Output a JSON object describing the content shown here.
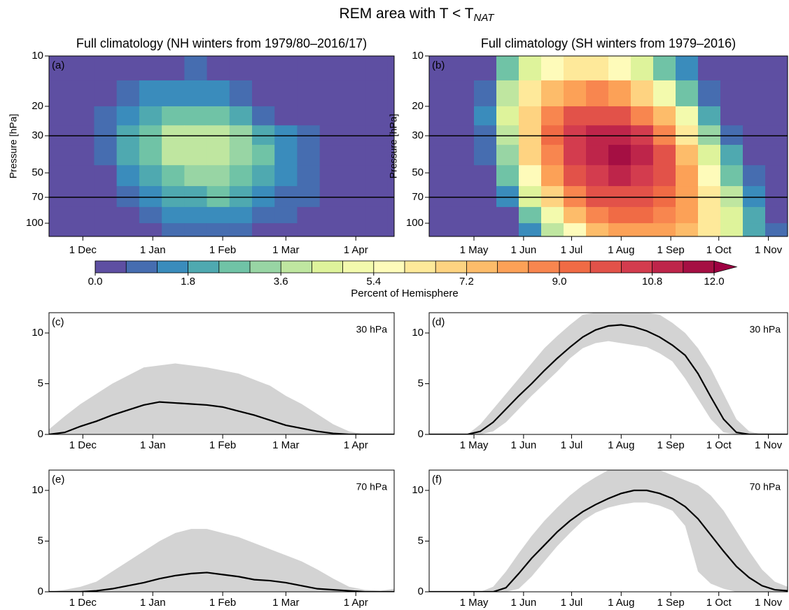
{
  "figure": {
    "title": "REM area with T < T",
    "title_sub": "NAT"
  },
  "colorbar": {
    "label": "Percent of Hemisphere",
    "levels": [
      0,
      0.6,
      1.2,
      1.8,
      2.4,
      3.0,
      3.6,
      4.2,
      4.8,
      5.4,
      6.0,
      6.6,
      7.2,
      7.8,
      8.4,
      9.0,
      9.6,
      10.2,
      10.8,
      11.4,
      12.0
    ],
    "colors": [
      "#5e4fa2",
      "#466db0",
      "#3a8cbc",
      "#4fa9b0",
      "#70c3a6",
      "#98d5a4",
      "#bfe6a0",
      "#def39b",
      "#f3faad",
      "#fefbba",
      "#fee99a",
      "#fed381",
      "#fdbc6a",
      "#fca157",
      "#f8864f",
      "#f06b45",
      "#e25249",
      "#d33c4e",
      "#be254a",
      "#a50f43"
    ],
    "extend_color": "#9e0142",
    "ticks": [
      {
        "value": 0,
        "label": "0.0"
      },
      {
        "value": 1.8,
        "label": "1.8"
      },
      {
        "value": 3.6,
        "label": "3.6"
      },
      {
        "value": 5.4,
        "label": "5.4"
      },
      {
        "value": 7.2,
        "label": "7.2"
      },
      {
        "value": 9.0,
        "label": "9.0"
      },
      {
        "value": 10.8,
        "label": "10.8"
      },
      {
        "value": 12.0,
        "label": "12.0"
      }
    ]
  },
  "chart_data": [
    {
      "type": "contour",
      "title": "Full climatology (NH winters from 1979/80–2016/17)",
      "panel_label": "(a)",
      "ylabel": "Pressure [hPa]",
      "xlim": [
        15,
        168
      ],
      "xticks": [
        {
          "value": 30,
          "label": "1 Dec"
        },
        {
          "value": 61,
          "label": "1 Jan"
        },
        {
          "value": 92,
          "label": "1 Feb"
        },
        {
          "value": 120,
          "label": "1 Mar"
        },
        {
          "value": 151,
          "label": "1 Apr"
        }
      ],
      "ylim": [
        120,
        10
      ],
      "log_y": true,
      "yticks": [
        10,
        20,
        30,
        50,
        70,
        100
      ],
      "hlines": [
        30,
        70
      ],
      "x_edges": [
        15,
        25,
        35,
        45,
        55,
        65,
        75,
        85,
        95,
        105,
        115,
        125,
        135,
        145,
        155,
        165
      ],
      "p_edges": [
        10,
        14,
        20,
        26,
        34,
        45,
        60,
        80,
        100,
        120
      ],
      "values": [
        [
          0,
          0,
          0,
          0,
          0.3,
          0.5,
          0.6,
          0.4,
          0,
          0,
          0,
          0,
          0,
          0,
          0
        ],
        [
          0,
          0,
          0.3,
          0.7,
          1.2,
          1.6,
          1.7,
          1.4,
          0.9,
          0.3,
          0,
          0,
          0,
          0,
          0
        ],
        [
          0,
          0,
          0.6,
          1.4,
          2.2,
          2.8,
          2.9,
          2.5,
          1.9,
          1.1,
          0.4,
          0,
          0,
          0,
          0
        ],
        [
          0,
          0.2,
          0.9,
          1.9,
          2.9,
          3.7,
          3.9,
          3.6,
          3.0,
          2.2,
          1.3,
          0.6,
          0.1,
          0,
          0
        ],
        [
          0,
          0.1,
          0.8,
          1.8,
          2.8,
          3.6,
          3.9,
          3.7,
          3.2,
          2.5,
          1.7,
          0.9,
          0.3,
          0,
          0
        ],
        [
          0,
          0,
          0.5,
          1.3,
          2.2,
          2.9,
          3.2,
          3.2,
          2.9,
          2.3,
          1.6,
          0.9,
          0.3,
          0,
          0
        ],
        [
          0,
          0,
          0.2,
          0.8,
          1.5,
          2.0,
          2.3,
          2.4,
          2.2,
          1.7,
          1.1,
          0.6,
          0.1,
          0,
          0
        ],
        [
          0,
          0,
          0,
          0.3,
          0.8,
          1.2,
          1.5,
          1.6,
          1.4,
          1.0,
          0.6,
          0.2,
          0,
          0,
          0
        ],
        [
          0,
          0,
          0,
          0,
          0.3,
          0.6,
          0.8,
          0.8,
          0.7,
          0.4,
          0.1,
          0,
          0,
          0,
          0
        ]
      ]
    },
    {
      "type": "contour",
      "title": "Full climatology (SH winters from 1979–2016)",
      "panel_label": "(b)",
      "ylabel": "Pressure [hPa]",
      "xlim": [
        2,
        226
      ],
      "xticks": [
        {
          "value": 30,
          "label": "1 May"
        },
        {
          "value": 61,
          "label": "1 Jun"
        },
        {
          "value": 91,
          "label": "1 Jul"
        },
        {
          "value": 122,
          "label": "1 Aug"
        },
        {
          "value": 153,
          "label": "1 Sep"
        },
        {
          "value": 183,
          "label": "1 Oct"
        },
        {
          "value": 214,
          "label": "1 Nov"
        }
      ],
      "ylim": [
        120,
        10
      ],
      "log_y": true,
      "yticks": [
        10,
        20,
        30,
        50,
        70,
        100
      ],
      "hlines": [
        30,
        70
      ],
      "x_edges": [
        2,
        16,
        30,
        44,
        58,
        72,
        86,
        100,
        114,
        128,
        142,
        156,
        170,
        184,
        198,
        212,
        226
      ],
      "p_edges": [
        10,
        14,
        20,
        26,
        34,
        45,
        60,
        80,
        100,
        120
      ],
      "values": [
        [
          0,
          0,
          0.5,
          2.5,
          4.5,
          5.8,
          6.3,
          6.2,
          5.5,
          4.3,
          2.8,
          1.2,
          0.2,
          0,
          0,
          0
        ],
        [
          0,
          0,
          1.0,
          3.6,
          6.0,
          7.6,
          8.3,
          8.4,
          7.9,
          6.8,
          5.0,
          2.8,
          0.8,
          0,
          0,
          0
        ],
        [
          0,
          0,
          1.2,
          4.2,
          6.8,
          8.6,
          9.6,
          10.0,
          9.7,
          8.8,
          7.2,
          4.8,
          2.0,
          0.3,
          0,
          0
        ],
        [
          0,
          0,
          1.0,
          4.0,
          7.0,
          9.0,
          10.3,
          10.9,
          10.9,
          10.2,
          8.7,
          6.3,
          3.4,
          0.9,
          0,
          0
        ],
        [
          0,
          0,
          0.6,
          3.4,
          6.6,
          8.8,
          10.3,
          11.2,
          11.5,
          10.9,
          9.6,
          7.4,
          4.6,
          1.8,
          0.2,
          0
        ],
        [
          0,
          0,
          0.2,
          2.4,
          5.6,
          8.1,
          9.7,
          10.7,
          11.0,
          10.6,
          9.7,
          8.0,
          5.6,
          2.9,
          0.7,
          0
        ],
        [
          0,
          0,
          0,
          1.4,
          4.3,
          6.9,
          8.6,
          9.6,
          10.0,
          9.9,
          9.3,
          8.0,
          6.1,
          3.7,
          1.3,
          0.1
        ],
        [
          0,
          0,
          0,
          0.5,
          2.7,
          5.3,
          7.2,
          8.4,
          9.0,
          9.1,
          8.7,
          7.8,
          6.2,
          4.2,
          1.9,
          0.4
        ],
        [
          0,
          0,
          0,
          0,
          1.3,
          3.7,
          5.8,
          7.2,
          8.0,
          8.3,
          8.2,
          7.5,
          6.2,
          4.4,
          2.3,
          0.7
        ]
      ]
    },
    {
      "type": "line",
      "panel_label": "(c)",
      "annotation": "30 hPa",
      "xlim": [
        15,
        168
      ],
      "xticks": [
        {
          "value": 30,
          "label": "1 Dec"
        },
        {
          "value": 61,
          "label": "1 Jan"
        },
        {
          "value": 92,
          "label": "1 Feb"
        },
        {
          "value": 120,
          "label": "1 Mar"
        },
        {
          "value": 151,
          "label": "1 Apr"
        }
      ],
      "ylim": [
        0,
        12
      ],
      "yticks": [
        0,
        5,
        10
      ],
      "x": [
        15,
        22,
        29,
        36,
        43,
        50,
        57,
        64,
        71,
        78,
        85,
        92,
        99,
        106,
        113,
        120,
        127,
        134,
        141,
        148,
        155,
        162,
        168
      ],
      "band": {
        "color": "#d3d3d3",
        "upper": [
          0.5,
          1.8,
          3,
          4,
          5,
          5.8,
          6.6,
          6.8,
          7,
          6.8,
          6.6,
          6.3,
          6,
          5.4,
          4.8,
          3.8,
          3,
          2,
          1,
          0.3,
          0,
          0,
          0
        ],
        "lower": [
          0,
          0,
          0,
          0,
          0,
          0,
          0,
          0,
          0,
          0,
          0,
          0,
          0,
          0,
          0,
          0,
          0,
          0,
          0,
          0,
          0,
          0,
          0
        ]
      },
      "series": [
        {
          "color": "#000000",
          "values": [
            0,
            0.2,
            0.8,
            1.3,
            1.9,
            2.4,
            2.9,
            3.2,
            3.1,
            3.0,
            2.9,
            2.7,
            2.3,
            1.9,
            1.4,
            0.9,
            0.6,
            0.3,
            0.1,
            0,
            0,
            0,
            0
          ]
        }
      ]
    },
    {
      "type": "line",
      "panel_label": "(d)",
      "annotation": "30 hPa",
      "xlim": [
        2,
        226
      ],
      "xticks": [
        {
          "value": 30,
          "label": "1 May"
        },
        {
          "value": 61,
          "label": "1 Jun"
        },
        {
          "value": 91,
          "label": "1 Jul"
        },
        {
          "value": 122,
          "label": "1 Aug"
        },
        {
          "value": 153,
          "label": "1 Sep"
        },
        {
          "value": 183,
          "label": "1 Oct"
        },
        {
          "value": 214,
          "label": "1 Nov"
        }
      ],
      "ylim": [
        0,
        12
      ],
      "yticks": [
        0,
        5,
        10
      ],
      "x": [
        2,
        10,
        18,
        26,
        34,
        42,
        50,
        58,
        66,
        74,
        82,
        90,
        98,
        106,
        114,
        122,
        130,
        138,
        146,
        154,
        162,
        170,
        178,
        186,
        194,
        202,
        210,
        218,
        226
      ],
      "band": {
        "color": "#d3d3d3",
        "upper": [
          0,
          0,
          0,
          0,
          1,
          2.5,
          4,
          5.5,
          7,
          8.5,
          9.7,
          10.8,
          11.8,
          12,
          12,
          12,
          12,
          12,
          11.8,
          11,
          10,
          8.5,
          6.5,
          4,
          1.5,
          0.3,
          0,
          0,
          0
        ],
        "lower": [
          0,
          0,
          0,
          0,
          0,
          0.3,
          1.2,
          2.5,
          3.8,
          5,
          6.2,
          7.5,
          8.5,
          9,
          9.2,
          9,
          8.8,
          8.6,
          8,
          7.2,
          5.5,
          3.5,
          1.5,
          0.2,
          0,
          0,
          0,
          0,
          0
        ]
      },
      "series": [
        {
          "color": "#000000",
          "values": [
            0,
            0,
            0,
            0,
            0.3,
            1.2,
            2.5,
            3.8,
            5.0,
            6.3,
            7.5,
            8.6,
            9.6,
            10.3,
            10.7,
            10.8,
            10.6,
            10.2,
            9.6,
            8.8,
            7.8,
            6.0,
            3.7,
            1.5,
            0.2,
            0,
            0,
            0,
            0
          ]
        }
      ]
    },
    {
      "type": "line",
      "panel_label": "(e)",
      "annotation": "70 hPa",
      "xlim": [
        15,
        168
      ],
      "xticks": [
        {
          "value": 30,
          "label": "1 Dec"
        },
        {
          "value": 61,
          "label": "1 Jan"
        },
        {
          "value": 92,
          "label": "1 Feb"
        },
        {
          "value": 120,
          "label": "1 Mar"
        },
        {
          "value": 151,
          "label": "1 Apr"
        }
      ],
      "ylim": [
        0,
        12
      ],
      "yticks": [
        0,
        5,
        10
      ],
      "x": [
        15,
        22,
        29,
        36,
        43,
        50,
        57,
        64,
        71,
        78,
        85,
        92,
        99,
        106,
        113,
        120,
        127,
        134,
        141,
        148,
        155,
        162,
        168
      ],
      "band": {
        "color": "#d3d3d3",
        "upper": [
          0,
          0.2,
          0.5,
          1,
          2,
          3,
          4,
          5,
          5.8,
          6.2,
          6.2,
          5.8,
          5.4,
          4.8,
          4.2,
          3.6,
          3,
          2.2,
          1.3,
          0.5,
          0.2,
          0.1,
          0.3
        ],
        "lower": [
          0,
          0,
          0,
          0,
          0,
          0,
          0,
          0,
          0,
          0,
          0,
          0,
          0,
          0,
          0,
          0,
          0,
          0,
          0,
          0,
          0,
          0,
          0
        ]
      },
      "series": [
        {
          "color": "#000000",
          "values": [
            0,
            0,
            0,
            0.1,
            0.3,
            0.6,
            0.9,
            1.3,
            1.6,
            1.8,
            1.9,
            1.7,
            1.5,
            1.2,
            1.1,
            0.9,
            0.6,
            0.3,
            0.2,
            0.1,
            0,
            0,
            0
          ]
        }
      ]
    },
    {
      "type": "line",
      "panel_label": "(f)",
      "annotation": "70 hPa",
      "xlim": [
        2,
        226
      ],
      "xticks": [
        {
          "value": 30,
          "label": "1 May"
        },
        {
          "value": 61,
          "label": "1 Jun"
        },
        {
          "value": 91,
          "label": "1 Jul"
        },
        {
          "value": 122,
          "label": "1 Aug"
        },
        {
          "value": 153,
          "label": "1 Sep"
        },
        {
          "value": 183,
          "label": "1 Oct"
        },
        {
          "value": 214,
          "label": "1 Nov"
        }
      ],
      "ylim": [
        0,
        12
      ],
      "yticks": [
        0,
        5,
        10
      ],
      "x": [
        2,
        10,
        18,
        26,
        34,
        42,
        50,
        58,
        66,
        74,
        82,
        90,
        98,
        106,
        114,
        122,
        130,
        138,
        146,
        154,
        162,
        170,
        178,
        186,
        194,
        202,
        210,
        218,
        226
      ],
      "band": {
        "color": "#d3d3d3",
        "upper": [
          0,
          0,
          0,
          0,
          0,
          0.5,
          2,
          3.8,
          5.5,
          7,
          8.3,
          9.5,
          10.5,
          11.3,
          12,
          12,
          12,
          12,
          12,
          11.5,
          11,
          10.5,
          9.5,
          8,
          6,
          4,
          2.2,
          1,
          0.5
        ],
        "lower": [
          0,
          0,
          0,
          0,
          0,
          0,
          0,
          0.3,
          1.5,
          3,
          4.5,
          5.8,
          7,
          7.8,
          8.3,
          8.6,
          8.8,
          8.8,
          8.5,
          8,
          6.5,
          2,
          0.8,
          0.3,
          0,
          0,
          0,
          0,
          0
        ]
      },
      "series": [
        {
          "color": "#000000",
          "values": [
            0,
            0,
            0,
            0,
            0,
            0,
            0.4,
            1.8,
            3.3,
            4.6,
            5.9,
            7.0,
            7.9,
            8.6,
            9.2,
            9.7,
            10.0,
            10.0,
            9.7,
            9.2,
            8.4,
            7.2,
            5.6,
            4.0,
            2.5,
            1.4,
            0.6,
            0.2,
            0.1
          ]
        }
      ]
    }
  ]
}
